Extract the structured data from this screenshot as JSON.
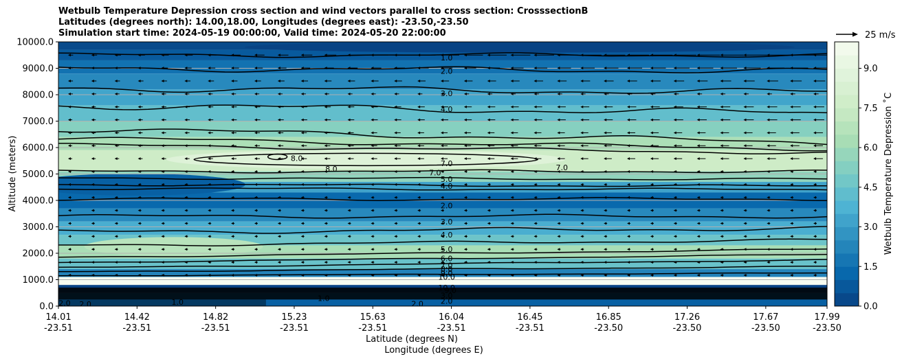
{
  "chart_data": {
    "type": "heatmap",
    "title_lines": [
      "Wetbulb Temperature Depression cross section and wind vectors parallel to cross section: CrosssectionB",
      "Latitudes (degrees north): 14.00,18.00, Longitudes (degrees east): -23.50,-23.50",
      "Simulation start time: 2024-05-19 00:00:00, Valid time: 2024-05-20 22:00:00"
    ],
    "ylabel": "Altitude (meters)",
    "xlabel_lat": "Latitude (degrees N)",
    "xlabel_lon": "Longitude (degrees E)",
    "ylim": [
      0,
      10000
    ],
    "y_ticks": [
      "0.0",
      "1000.0",
      "2000.0",
      "3000.0",
      "4000.0",
      "5000.0",
      "6000.0",
      "7000.0",
      "8000.0",
      "9000.0",
      "10000.0"
    ],
    "x_ticks": [
      {
        "lat": "14.01",
        "lon": "-23.51"
      },
      {
        "lat": "14.42",
        "lon": "-23.51"
      },
      {
        "lat": "14.82",
        "lon": "-23.51"
      },
      {
        "lat": "15.23",
        "lon": "-23.51"
      },
      {
        "lat": "15.63",
        "lon": "-23.51"
      },
      {
        "lat": "16.04",
        "lon": "-23.51"
      },
      {
        "lat": "16.45",
        "lon": "-23.51"
      },
      {
        "lat": "16.85",
        "lon": "-23.50"
      },
      {
        "lat": "17.26",
        "lon": "-23.50"
      },
      {
        "lat": "17.67",
        "lon": "-23.50"
      },
      {
        "lat": "17.99",
        "lon": "-23.50"
      }
    ],
    "grid": "horizontal",
    "colorbar": {
      "label": "Wetbulb Temperature Depression $^\\circ$C",
      "label_display": "Wetbulb Temperature Depression ˚C",
      "range": [
        0,
        10
      ],
      "ticks": [
        "0.0",
        "1.5",
        "3.0",
        "4.5",
        "6.0",
        "7.5",
        "9.0"
      ],
      "cmap": "GnBu_r"
    },
    "quiver_key": "25 m/s",
    "contour_labels": [
      {
        "text": "1.0",
        "x": 0.505,
        "alt": 9400
      },
      {
        "text": "2.0",
        "x": 0.505,
        "alt": 8900
      },
      {
        "text": "3.0",
        "x": 0.505,
        "alt": 8050
      },
      {
        "text": "4.0",
        "x": 0.505,
        "alt": 7450
      },
      {
        "text": "8.0",
        "x": 0.31,
        "alt": 5600
      },
      {
        "text": "8.0",
        "x": 0.355,
        "alt": 5200
      },
      {
        "text": "7.0",
        "x": 0.49,
        "alt": 5050
      },
      {
        "text": "7.0",
        "x": 0.505,
        "alt": 5400
      },
      {
        "text": "7.0",
        "x": 0.655,
        "alt": 5250
      },
      {
        "text": "5.0",
        "x": 0.505,
        "alt": 4800
      },
      {
        "text": "4.0",
        "x": 0.505,
        "alt": 4550
      },
      {
        "text": "2.0",
        "x": 0.505,
        "alt": 3800
      },
      {
        "text": "3.0",
        "x": 0.505,
        "alt": 3200
      },
      {
        "text": "4.0",
        "x": 0.505,
        "alt": 2700
      },
      {
        "text": "5.0",
        "x": 0.505,
        "alt": 2150
      },
      {
        "text": "6.0",
        "x": 0.505,
        "alt": 1800
      },
      {
        "text": "7.0",
        "x": 0.505,
        "alt": 1550
      },
      {
        "text": "8.0",
        "x": 0.505,
        "alt": 1400
      },
      {
        "text": "9.0",
        "x": 0.505,
        "alt": 1250
      },
      {
        "text": "10.0",
        "x": 0.505,
        "alt": 1100
      },
      {
        "text": "10.0",
        "x": 0.505,
        "alt": 700
      },
      {
        "text": "9.0",
        "x": 0.51,
        "alt": 600
      },
      {
        "text": "3.0",
        "x": 0.505,
        "alt": 400
      },
      {
        "text": "2.0",
        "x": 0.505,
        "alt": 200
      },
      {
        "text": "2.0",
        "x": 0.467,
        "alt": 90
      },
      {
        "text": "1.0",
        "x": 0.345,
        "alt": 300
      },
      {
        "text": "1.0",
        "x": 0.155,
        "alt": 150
      },
      {
        "text": "2.0",
        "x": 0.008,
        "alt": 120
      },
      {
        "text": "2.0",
        "x": 0.035,
        "alt": 80
      }
    ]
  }
}
